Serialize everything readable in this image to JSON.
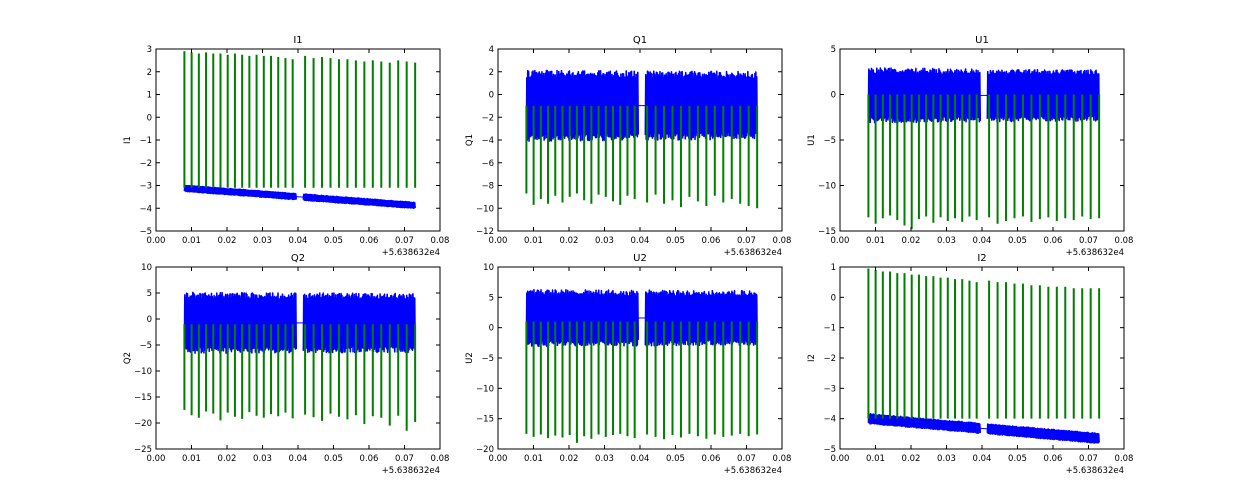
{
  "figure": {
    "series_colors": [
      "#0000ff",
      "#007f00"
    ]
  },
  "chart_data": [
    {
      "type": "line",
      "title": "I1",
      "ylabel": "I1",
      "xlabel": "",
      "x_offset_text": "+5.638632e4",
      "xlim": [
        0.0,
        0.08
      ],
      "ylim": [
        -5,
        3
      ],
      "xticks": [
        "0.00",
        "0.01",
        "0.02",
        "0.03",
        "0.04",
        "0.05",
        "0.06",
        "0.07",
        "0.08"
      ],
      "yticks": [
        "3",
        "2",
        "1",
        "0",
        "−1",
        "−2",
        "−3",
        "−4",
        "−5"
      ],
      "x_range": [
        0.008,
        0.073
      ],
      "gap": [
        0.0395,
        0.0415
      ],
      "series": [
        {
          "color": "#0000ff",
          "band_start": [
            -3.25,
            -3.0
          ],
          "band_end": [
            -4.0,
            -3.75
          ],
          "connector": true
        },
        {
          "color": "#007f00",
          "spike_base": -3.1,
          "spike_tops": [
            2.9,
            2.85,
            2.8,
            2.85,
            2.8,
            2.8,
            2.75,
            2.8,
            2.75,
            2.7,
            2.75,
            2.7,
            2.7,
            2.65,
            2.6,
            2.55,
            2.7,
            2.6,
            2.65,
            2.6,
            2.55,
            2.55,
            2.5,
            2.45,
            2.5,
            2.45,
            2.4,
            2.5,
            2.45,
            2.4
          ]
        }
      ]
    },
    {
      "type": "line",
      "title": "Q1",
      "ylabel": "Q1",
      "xlabel": "",
      "x_offset_text": "+5.638632e4",
      "xlim": [
        0.0,
        0.08
      ],
      "ylim": [
        -12,
        4
      ],
      "xticks": [
        "0.00",
        "0.01",
        "0.02",
        "0.03",
        "0.04",
        "0.05",
        "0.06",
        "0.07",
        "0.08"
      ],
      "yticks": [
        "4",
        "2",
        "0",
        "−2",
        "−4",
        "−6",
        "−8",
        "−10",
        "−12"
      ],
      "x_range": [
        0.008,
        0.073
      ],
      "gap": [
        0.0395,
        0.0415
      ],
      "series": [
        {
          "color": "#0000ff",
          "band_start": [
            -3.8,
            1.8
          ],
          "band_end": [
            -3.6,
            1.7
          ],
          "connector": true
        },
        {
          "color": "#007f00",
          "spike_base": -1.0,
          "spike_tops": [
            -8.7,
            -9.7,
            -9.2,
            -9.6,
            -8.9,
            -9.5,
            -9.0,
            -8.7,
            -9.3,
            -9.6,
            -8.8,
            -9.0,
            -9.4,
            -9.7,
            -8.9,
            -9.2,
            -9.5,
            -8.8,
            -9.6,
            -9.3,
            -9.9,
            -9.0,
            -9.4,
            -9.8,
            -8.9,
            -9.5,
            -9.2,
            -9.6,
            -9.8,
            -10.0
          ]
        }
      ]
    },
    {
      "type": "line",
      "title": "U1",
      "ylabel": "U1",
      "xlabel": "",
      "x_offset_text": "+5.638632e4",
      "xlim": [
        0.0,
        0.08
      ],
      "ylim": [
        -15,
        5
      ],
      "xticks": [
        "0.00",
        "0.01",
        "0.02",
        "0.03",
        "0.04",
        "0.05",
        "0.06",
        "0.07",
        "0.08"
      ],
      "yticks": [
        "5",
        "0",
        "−5",
        "−10",
        "−15"
      ],
      "x_range": [
        0.008,
        0.073
      ],
      "gap": [
        0.0395,
        0.0415
      ],
      "series": [
        {
          "color": "#0000ff",
          "band_start": [
            -2.8,
            2.6
          ],
          "band_end": [
            -2.6,
            2.4
          ],
          "connector": true
        },
        {
          "color": "#007f00",
          "spike_base": 0.0,
          "spike_tops": [
            -13.5,
            -14.2,
            -13.6,
            -13.3,
            -13.8,
            -14.4,
            -14.8,
            -13.7,
            -13.4,
            -14.1,
            -13.5,
            -13.9,
            -13.6,
            -14.0,
            -13.4,
            -13.8,
            -13.5,
            -14.2,
            -13.9,
            -13.6,
            -13.4,
            -14.0,
            -13.7,
            -13.5,
            -13.9,
            -13.6,
            -13.8,
            -13.4,
            -13.7,
            -13.6
          ]
        }
      ]
    },
    {
      "type": "line",
      "title": "Q2",
      "ylabel": "Q2",
      "xlabel": "",
      "x_offset_text": "+5.638632e4",
      "xlim": [
        0.0,
        0.08
      ],
      "ylim": [
        -25,
        10
      ],
      "xticks": [
        "0.00",
        "0.01",
        "0.02",
        "0.03",
        "0.04",
        "0.05",
        "0.06",
        "0.07",
        "0.08"
      ],
      "yticks": [
        "10",
        "5",
        "0",
        "−5",
        "−10",
        "−15",
        "−20",
        "−25"
      ],
      "x_range": [
        0.008,
        0.073
      ],
      "gap": [
        0.0395,
        0.0415
      ],
      "series": [
        {
          "color": "#0000ff",
          "band_start": [
            -6.0,
            4.5
          ],
          "band_end": [
            -5.8,
            4.3
          ],
          "connector": true
        },
        {
          "color": "#007f00",
          "spike_base": -1.0,
          "spike_tops": [
            -17.5,
            -18.5,
            -19.0,
            -17.8,
            -18.2,
            -19.5,
            -18.0,
            -18.8,
            -19.2,
            -17.9,
            -18.6,
            -19.0,
            -18.3,
            -18.7,
            -18.0,
            -19.1,
            -18.4,
            -18.9,
            -19.6,
            -18.2,
            -18.8,
            -19.3,
            -18.5,
            -20.2,
            -18.7,
            -19.0,
            -20.5,
            -18.6,
            -21.5,
            -19.8
          ]
        }
      ]
    },
    {
      "type": "line",
      "title": "U2",
      "ylabel": "U2",
      "xlabel": "",
      "x_offset_text": "+5.638632e4",
      "xlim": [
        0.0,
        0.08
      ],
      "ylim": [
        -20,
        10
      ],
      "xticks": [
        "0.00",
        "0.01",
        "0.02",
        "0.03",
        "0.04",
        "0.05",
        "0.06",
        "0.07",
        "0.08"
      ],
      "yticks": [
        "10",
        "5",
        "0",
        "−5",
        "−10",
        "−15",
        "−20"
      ],
      "x_range": [
        0.008,
        0.073
      ],
      "gap": [
        0.0395,
        0.0415
      ],
      "series": [
        {
          "color": "#0000ff",
          "band_start": [
            -2.6,
            5.8
          ],
          "band_end": [
            -2.4,
            5.6
          ],
          "connector": true
        },
        {
          "color": "#007f00",
          "spike_base": 1.0,
          "spike_tops": [
            -17.5,
            -18.0,
            -17.6,
            -18.2,
            -17.8,
            -18.1,
            -17.7,
            -19.0,
            -17.9,
            -18.3,
            -17.6,
            -18.0,
            -17.7,
            -17.5,
            -17.9,
            -18.2,
            -17.6,
            -18.0,
            -18.4,
            -17.7,
            -18.1,
            -17.5,
            -17.9,
            -18.3,
            -17.6,
            -18.0,
            -17.8,
            -17.5,
            -17.9,
            -17.6
          ]
        }
      ]
    },
    {
      "type": "line",
      "title": "I2",
      "ylabel": "I2",
      "xlabel": "",
      "x_offset_text": "+5.638632e4",
      "xlim": [
        0.0,
        0.08
      ],
      "ylim": [
        -5,
        1
      ],
      "xticks": [
        "0.00",
        "0.01",
        "0.02",
        "0.03",
        "0.04",
        "0.05",
        "0.06",
        "0.07",
        "0.08"
      ],
      "yticks": [
        "1",
        "0",
        "−1",
        "−2",
        "−3",
        "−4",
        "−5"
      ],
      "x_range": [
        0.008,
        0.073
      ],
      "gap": [
        0.0395,
        0.0415
      ],
      "series": [
        {
          "color": "#0000ff",
          "band_start": [
            -4.15,
            -3.85
          ],
          "band_end": [
            -4.8,
            -4.5
          ],
          "connector": true
        },
        {
          "color": "#007f00",
          "spike_base": -4.0,
          "spike_tops": [
            0.95,
            0.9,
            0.85,
            0.85,
            0.8,
            0.8,
            0.75,
            0.75,
            0.7,
            0.7,
            0.65,
            0.65,
            0.6,
            0.6,
            0.55,
            0.5,
            0.55,
            0.5,
            0.5,
            0.45,
            0.45,
            0.4,
            0.4,
            0.35,
            0.35,
            0.35,
            0.3,
            0.3,
            0.3,
            0.3
          ]
        }
      ]
    }
  ]
}
